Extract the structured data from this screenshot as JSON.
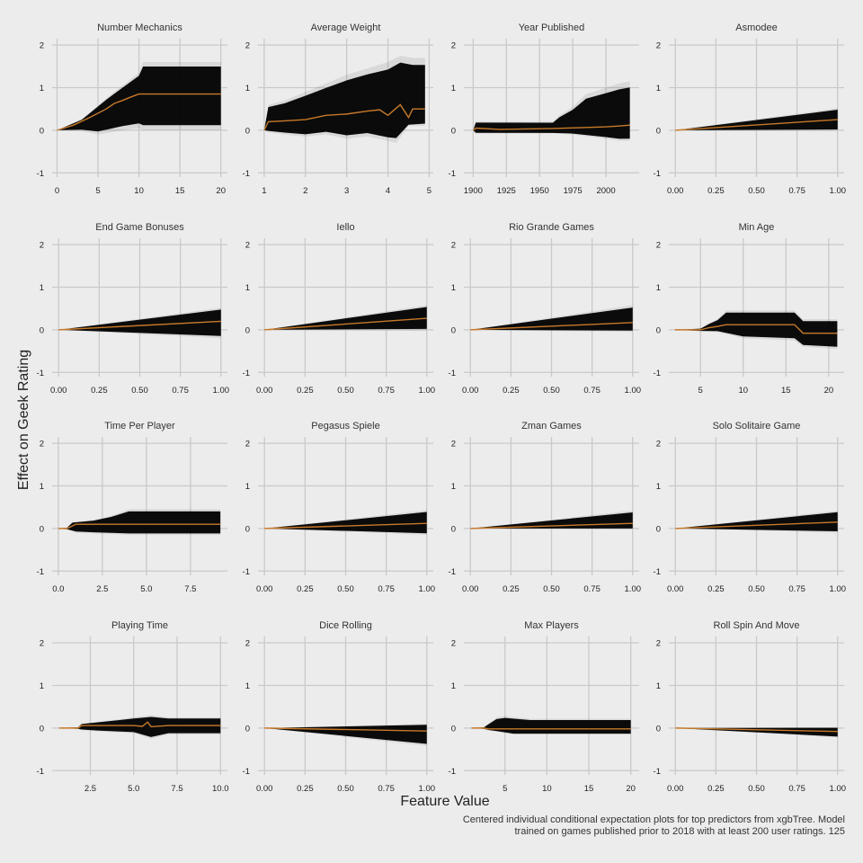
{
  "chart_data": {
    "type": "line",
    "style": {
      "background": "#ececec",
      "grid_color": "#c9c9c9",
      "ice_color": "#000000",
      "pdp_color": "#c87a2a"
    },
    "xlabel": "Feature Value",
    "ylabel": "Effect on Geek Rating",
    "ylim": [
      -1.1,
      2.15
    ],
    "yticks": [
      -1,
      0,
      1,
      2
    ],
    "caption": "Centered individual conditional expectation plots for top predictors from xgbTree. Model trained on games published prior to 2018 with at least 200 user ratings. 125",
    "panels": [
      {
        "title": "Number Mechanics",
        "xlim": [
          -0.6,
          20.8
        ],
        "xticks": [
          0,
          5,
          10,
          15,
          20
        ],
        "xtick_labels": [
          "0",
          "5",
          "10",
          "15",
          "20"
        ],
        "pdp": [
          [
            0,
            0
          ],
          [
            2,
            0.12
          ],
          [
            4,
            0.3
          ],
          [
            6,
            0.5
          ],
          [
            7,
            0.63
          ],
          [
            8,
            0.7
          ],
          [
            9,
            0.78
          ],
          [
            10,
            0.85
          ],
          [
            20,
            0.85
          ]
        ],
        "band_upper": [
          [
            0,
            0
          ],
          [
            3,
            0.25
          ],
          [
            6,
            0.75
          ],
          [
            8,
            1.05
          ],
          [
            10,
            1.35
          ],
          [
            10.5,
            1.6
          ],
          [
            20,
            1.6
          ]
        ],
        "band_lower": [
          [
            0,
            0
          ],
          [
            3,
            -0.02
          ],
          [
            5,
            -0.1
          ],
          [
            8,
            0
          ],
          [
            10,
            0.05
          ],
          [
            10.5,
            0
          ],
          [
            20,
            0
          ]
        ]
      },
      {
        "title": "Average Weight",
        "xlim": [
          0.85,
          5.1
        ],
        "xticks": [
          1,
          2,
          3,
          4,
          5
        ],
        "xtick_labels": [
          "1",
          "2",
          "3",
          "4",
          "5"
        ],
        "pdp": [
          [
            1,
            0
          ],
          [
            1.1,
            0.2
          ],
          [
            1.5,
            0.22
          ],
          [
            2,
            0.25
          ],
          [
            2.5,
            0.35
          ],
          [
            3,
            0.38
          ],
          [
            3.5,
            0.45
          ],
          [
            3.8,
            0.48
          ],
          [
            4.0,
            0.35
          ],
          [
            4.3,
            0.6
          ],
          [
            4.5,
            0.3
          ],
          [
            4.6,
            0.5
          ],
          [
            4.9,
            0.5
          ]
        ],
        "band_upper": [
          [
            1,
            0
          ],
          [
            1.1,
            0.6
          ],
          [
            1.5,
            0.7
          ],
          [
            2,
            0.9
          ],
          [
            2.5,
            1.1
          ],
          [
            3,
            1.3
          ],
          [
            3.5,
            1.45
          ],
          [
            4,
            1.6
          ],
          [
            4.3,
            1.75
          ],
          [
            4.6,
            1.7
          ],
          [
            4.9,
            1.7
          ]
        ],
        "band_lower": [
          [
            1,
            0
          ],
          [
            1.1,
            -0.05
          ],
          [
            1.5,
            -0.1
          ],
          [
            2,
            -0.15
          ],
          [
            2.5,
            -0.1
          ],
          [
            3,
            -0.2
          ],
          [
            3.5,
            -0.15
          ],
          [
            4,
            -0.25
          ],
          [
            4.2,
            -0.3
          ],
          [
            4.5,
            0.1
          ],
          [
            4.9,
            0.1
          ]
        ]
      },
      {
        "title": "Year Published",
        "xlim": [
          1893,
          2025
        ],
        "xticks": [
          1900,
          1925,
          1950,
          1975,
          2000
        ],
        "xtick_labels": [
          "1900",
          "1925",
          "1950",
          "1975",
          "2000"
        ],
        "pdp": [
          [
            1900,
            0
          ],
          [
            1902,
            0.05
          ],
          [
            1920,
            0.02
          ],
          [
            1960,
            0.04
          ],
          [
            1980,
            0.06
          ],
          [
            2000,
            0.08
          ],
          [
            2010,
            0.1
          ],
          [
            2018,
            0.12
          ]
        ],
        "band_upper": [
          [
            1900,
            0
          ],
          [
            1902,
            0.2
          ],
          [
            1960,
            0.2
          ],
          [
            1965,
            0.35
          ],
          [
            1975,
            0.55
          ],
          [
            1985,
            0.85
          ],
          [
            2000,
            1.0
          ],
          [
            2010,
            1.1
          ],
          [
            2018,
            1.15
          ]
        ],
        "band_lower": [
          [
            1900,
            0
          ],
          [
            1902,
            -0.08
          ],
          [
            1960,
            -0.08
          ],
          [
            1975,
            -0.1
          ],
          [
            2000,
            -0.2
          ],
          [
            2010,
            -0.25
          ],
          [
            2018,
            -0.25
          ]
        ]
      },
      {
        "title": "Asmodee",
        "xlim": [
          -0.04,
          1.04
        ],
        "xticks": [
          0,
          0.25,
          0.5,
          0.75,
          1
        ],
        "xtick_labels": [
          "0.00",
          "0.25",
          "0.50",
          "0.75",
          "1.00"
        ],
        "pdp": [
          [
            0,
            0
          ],
          [
            1,
            0.25
          ]
        ],
        "band_upper": [
          [
            0,
            0
          ],
          [
            1,
            0.52
          ]
        ],
        "band_lower": [
          [
            0,
            0
          ],
          [
            1,
            -0.02
          ]
        ]
      },
      {
        "title": "End Game Bonuses",
        "xlim": [
          -0.04,
          1.04
        ],
        "xticks": [
          0,
          0.25,
          0.5,
          0.75,
          1
        ],
        "xtick_labels": [
          "0.00",
          "0.25",
          "0.50",
          "0.75",
          "1.00"
        ],
        "pdp": [
          [
            0,
            0
          ],
          [
            1,
            0.2
          ]
        ],
        "band_upper": [
          [
            0,
            0
          ],
          [
            1,
            0.52
          ]
        ],
        "band_lower": [
          [
            0,
            0
          ],
          [
            1,
            -0.2
          ]
        ]
      },
      {
        "title": "Iello",
        "xlim": [
          -0.04,
          1.04
        ],
        "xticks": [
          0,
          0.25,
          0.5,
          0.75,
          1
        ],
        "xtick_labels": [
          "0.00",
          "0.25",
          "0.50",
          "0.75",
          "1.00"
        ],
        "pdp": [
          [
            0,
            0
          ],
          [
            1,
            0.27
          ]
        ],
        "band_upper": [
          [
            0,
            0
          ],
          [
            1,
            0.58
          ]
        ],
        "band_lower": [
          [
            0,
            0
          ],
          [
            1,
            -0.02
          ]
        ]
      },
      {
        "title": "Rio Grande Games",
        "xlim": [
          -0.04,
          1.04
        ],
        "xticks": [
          0,
          0.25,
          0.5,
          0.75,
          1
        ],
        "xtick_labels": [
          "0.00",
          "0.25",
          "0.50",
          "0.75",
          "1.00"
        ],
        "pdp": [
          [
            0,
            0
          ],
          [
            1,
            0.17
          ]
        ],
        "band_upper": [
          [
            0,
            0
          ],
          [
            1,
            0.58
          ]
        ],
        "band_lower": [
          [
            0,
            0
          ],
          [
            1,
            -0.05
          ]
        ]
      },
      {
        "title": "Min Age",
        "xlim": [
          1.3,
          21.8
        ],
        "xticks": [
          5,
          10,
          15,
          20
        ],
        "xtick_labels": [
          "5",
          "10",
          "15",
          "20"
        ],
        "pdp": [
          [
            2,
            0
          ],
          [
            5,
            0
          ],
          [
            6,
            0.05
          ],
          [
            7,
            0.08
          ],
          [
            8,
            0.12
          ],
          [
            12,
            0.12
          ],
          [
            16,
            0.12
          ],
          [
            17,
            -0.08
          ],
          [
            21,
            -0.08
          ]
        ],
        "band_upper": [
          [
            2,
            0
          ],
          [
            5,
            0.03
          ],
          [
            6,
            0.15
          ],
          [
            7,
            0.25
          ],
          [
            8,
            0.45
          ],
          [
            16,
            0.45
          ],
          [
            17,
            0.25
          ],
          [
            21,
            0.25
          ]
        ],
        "band_lower": [
          [
            2,
            0
          ],
          [
            5,
            -0.03
          ],
          [
            7,
            -0.05
          ],
          [
            10,
            -0.2
          ],
          [
            16,
            -0.25
          ],
          [
            17,
            -0.4
          ],
          [
            21,
            -0.45
          ]
        ]
      },
      {
        "title": "Time Per Player",
        "xlim": [
          -0.35,
          9.6
        ],
        "xticks": [
          0,
          2.5,
          5,
          7.5
        ],
        "xtick_labels": [
          "0.0",
          "2.5",
          "5.0",
          "7.5"
        ],
        "pdp": [
          [
            0,
            0
          ],
          [
            0.5,
            0
          ],
          [
            1,
            0.1
          ],
          [
            9.2,
            0.1
          ]
        ],
        "band_upper": [
          [
            0,
            0
          ],
          [
            0.5,
            0.02
          ],
          [
            0.8,
            0.15
          ],
          [
            2,
            0.2
          ],
          [
            3,
            0.3
          ],
          [
            4,
            0.45
          ],
          [
            9.2,
            0.45
          ]
        ],
        "band_lower": [
          [
            0,
            0
          ],
          [
            0.5,
            -0.02
          ],
          [
            1,
            -0.1
          ],
          [
            2,
            -0.12
          ],
          [
            4,
            -0.15
          ],
          [
            9.2,
            -0.15
          ]
        ]
      },
      {
        "title": "Pegasus Spiele",
        "xlim": [
          -0.04,
          1.04
        ],
        "xticks": [
          0,
          0.25,
          0.5,
          0.75,
          1
        ],
        "xtick_labels": [
          "0.00",
          "0.25",
          "0.50",
          "0.75",
          "1.00"
        ],
        "pdp": [
          [
            0,
            0
          ],
          [
            1,
            0.12
          ]
        ],
        "band_upper": [
          [
            0,
            0
          ],
          [
            1,
            0.43
          ]
        ],
        "band_lower": [
          [
            0,
            0
          ],
          [
            1,
            -0.15
          ]
        ]
      },
      {
        "title": "Zman Games",
        "xlim": [
          -0.04,
          1.04
        ],
        "xticks": [
          0,
          0.25,
          0.5,
          0.75,
          1
        ],
        "xtick_labels": [
          "0.00",
          "0.25",
          "0.50",
          "0.75",
          "1.00"
        ],
        "pdp": [
          [
            0,
            0
          ],
          [
            1,
            0.12
          ]
        ],
        "band_upper": [
          [
            0,
            0
          ],
          [
            1,
            0.42
          ]
        ],
        "band_lower": [
          [
            0,
            0
          ],
          [
            1,
            -0.02
          ]
        ]
      },
      {
        "title": "Solo Solitaire Game",
        "xlim": [
          -0.04,
          1.04
        ],
        "xticks": [
          0,
          0.25,
          0.5,
          0.75,
          1
        ],
        "xtick_labels": [
          "0.00",
          "0.25",
          "0.50",
          "0.75",
          "1.00"
        ],
        "pdp": [
          [
            0,
            0
          ],
          [
            1,
            0.15
          ]
        ],
        "band_upper": [
          [
            0,
            0
          ],
          [
            1,
            0.42
          ]
        ],
        "band_lower": [
          [
            0,
            0
          ],
          [
            1,
            -0.1
          ]
        ]
      },
      {
        "title": "Playing Time",
        "xlim": [
          0.3,
          10.4
        ],
        "xticks": [
          2.5,
          5,
          7.5,
          10
        ],
        "xtick_labels": [
          "2.5",
          "5.0",
          "7.5",
          "10.0"
        ],
        "pdp": [
          [
            0.7,
            0
          ],
          [
            1.8,
            0
          ],
          [
            2,
            0.06
          ],
          [
            5,
            0.06
          ],
          [
            5.5,
            0.04
          ],
          [
            5.8,
            0.14
          ],
          [
            6,
            0.03
          ],
          [
            7,
            0.06
          ],
          [
            10,
            0.06
          ]
        ],
        "band_upper": [
          [
            0.7,
            0
          ],
          [
            1.8,
            0.02
          ],
          [
            2,
            0.1
          ],
          [
            3,
            0.15
          ],
          [
            4,
            0.2
          ],
          [
            5,
            0.25
          ],
          [
            6,
            0.3
          ],
          [
            7,
            0.25
          ],
          [
            10,
            0.25
          ]
        ],
        "band_lower": [
          [
            0.7,
            0
          ],
          [
            1.8,
            -0.02
          ],
          [
            2,
            -0.05
          ],
          [
            3,
            -0.08
          ],
          [
            5,
            -0.12
          ],
          [
            6,
            -0.25
          ],
          [
            7,
            -0.15
          ],
          [
            10,
            -0.15
          ]
        ]
      },
      {
        "title": "Dice Rolling",
        "xlim": [
          -0.04,
          1.04
        ],
        "xticks": [
          0,
          0.25,
          0.5,
          0.75,
          1
        ],
        "xtick_labels": [
          "0.00",
          "0.25",
          "0.50",
          "0.75",
          "1.00"
        ],
        "pdp": [
          [
            0,
            0
          ],
          [
            1,
            -0.07
          ]
        ],
        "band_upper": [
          [
            0,
            0
          ],
          [
            1,
            0.1
          ]
        ],
        "band_lower": [
          [
            0,
            0
          ],
          [
            1,
            -0.42
          ]
        ]
      },
      {
        "title": "Max Players",
        "xlim": [
          0.1,
          21
        ],
        "xticks": [
          5,
          10,
          15,
          20
        ],
        "xtick_labels": [
          "5",
          "10",
          "15",
          "20"
        ],
        "pdp": [
          [
            1,
            0
          ],
          [
            2.5,
            0
          ],
          [
            3,
            -0.02
          ],
          [
            20,
            -0.02
          ]
        ],
        "band_upper": [
          [
            1,
            0
          ],
          [
            2.5,
            0.02
          ],
          [
            3,
            0.1
          ],
          [
            4,
            0.25
          ],
          [
            5,
            0.28
          ],
          [
            8,
            0.22
          ],
          [
            20,
            0.22
          ]
        ],
        "band_lower": [
          [
            1,
            0
          ],
          [
            2.5,
            -0.02
          ],
          [
            3,
            -0.05
          ],
          [
            4,
            -0.08
          ],
          [
            6,
            -0.15
          ],
          [
            20,
            -0.15
          ]
        ]
      },
      {
        "title": "Roll Spin And Move",
        "xlim": [
          -0.04,
          1.04
        ],
        "xticks": [
          0,
          0.25,
          0.5,
          0.75,
          1
        ],
        "xtick_labels": [
          "0.00",
          "0.25",
          "0.50",
          "0.75",
          "1.00"
        ],
        "pdp": [
          [
            0,
            0
          ],
          [
            1,
            -0.08
          ]
        ],
        "band_upper": [
          [
            0,
            0
          ],
          [
            1,
            0.02
          ]
        ],
        "band_lower": [
          [
            0,
            0
          ],
          [
            1,
            -0.22
          ]
        ]
      }
    ]
  }
}
